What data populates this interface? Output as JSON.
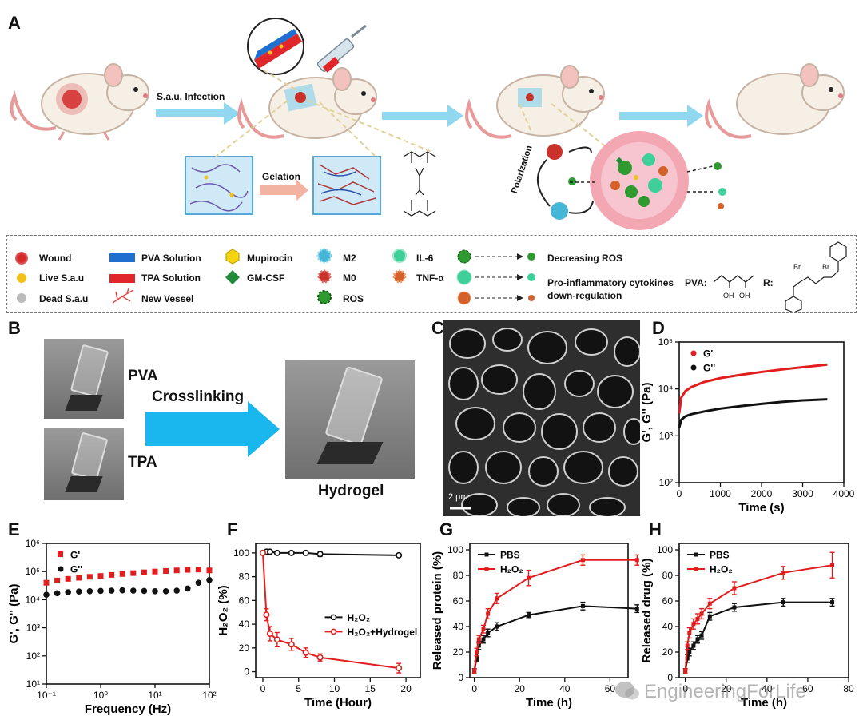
{
  "panels": {
    "A": "A",
    "B": "B",
    "C": "C",
    "D": "D",
    "E": "E",
    "F": "F",
    "G": "G",
    "H": "H"
  },
  "schematic": {
    "infection_label": "S.a.u. Infection",
    "gelation_label": "Gelation",
    "polarization_label": "Polarization"
  },
  "legend": {
    "items": [
      {
        "label": "Wound",
        "icon": "red-dot-icon",
        "color": "#d42a2a"
      },
      {
        "label": "Live S.a.u",
        "icon": "yellow-dot-icon",
        "color": "#f2c21b"
      },
      {
        "label": "Dead S.a.u",
        "icon": "grey-dot-icon",
        "color": "#aaaaaa"
      },
      {
        "label": "PVA Solution",
        "icon": "blue-bar-icon",
        "color": "#1f6fd0"
      },
      {
        "label": "TPA Solution",
        "icon": "red-bar-icon",
        "color": "#e0262b"
      },
      {
        "label": "New Vessel",
        "icon": "vessel-icon",
        "color": "#e04a4a"
      },
      {
        "label": "Mupirocin",
        "icon": "hexagon-icon",
        "color": "#f4d313"
      },
      {
        "label": "GM-CSF",
        "icon": "diamond-icon",
        "color": "#1e8a3a"
      },
      {
        "label": "M2",
        "icon": "m2-cell-icon",
        "color": "#45b6d8"
      },
      {
        "label": "M0",
        "icon": "m0-cell-icon",
        "color": "#c8322a"
      },
      {
        "label": "ROS",
        "icon": "ros-icon",
        "color": "#2f9a2f"
      },
      {
        "label": "IL-6",
        "icon": "il6-icon",
        "color": "#3fcf9a"
      },
      {
        "label": "TNF-α",
        "icon": "tnf-icon",
        "color": "#d4602a"
      }
    ],
    "decreasing_ros": "Decreasing  ROS",
    "cytokines_line1": "Pro-inflammatory cytokines",
    "cytokines_line2": "down-regulation",
    "pva_label": "PVA:",
    "r_label": "R:",
    "oh1": "OH",
    "oh2": "OH",
    "br1": "Br",
    "br2": "Br"
  },
  "panel_b": {
    "pva": "PVA",
    "tpa": "TPA",
    "crosslinking": "Crosslinking",
    "hydrogel": "Hydrogel"
  },
  "panel_c": {
    "scale_bar": "2 μm"
  },
  "watermark": "EngineeringForLife",
  "chart_data": [
    {
      "panel": "D",
      "type": "line",
      "xlabel": "Time (s)",
      "ylabel": "G', G'' (Pa)",
      "xlim": [
        0,
        4000
      ],
      "ylim_log10": [
        2,
        5
      ],
      "yscale": "log",
      "xticks": [
        "0",
        "1000",
        "2000",
        "3000",
        "4000"
      ],
      "yticks": [
        "10²",
        "10³",
        "10⁴",
        "10⁵"
      ],
      "legend": "top-left",
      "series": [
        {
          "name": "G'",
          "color": "#e21d1d",
          "x": [
            0,
            50,
            150,
            300,
            600,
            1000,
            1500,
            2000,
            2500,
            3000,
            3600
          ],
          "y": [
            3000,
            6500,
            9000,
            11000,
            14000,
            17000,
            20000,
            23000,
            26000,
            29000,
            33000
          ]
        },
        {
          "name": "G''",
          "color": "#111111",
          "x": [
            0,
            50,
            150,
            300,
            600,
            1000,
            1500,
            2000,
            2500,
            3000,
            3600
          ],
          "y": [
            1500,
            2200,
            2600,
            2900,
            3300,
            3800,
            4300,
            4800,
            5300,
            5700,
            6000
          ]
        }
      ]
    },
    {
      "panel": "E",
      "type": "scatter",
      "xlabel": "Frequency (Hz)",
      "ylabel": "G', G'' (Pa)",
      "xscale": "log",
      "yscale": "log",
      "xlim_log10": [
        -1,
        2
      ],
      "ylim_log10": [
        1,
        6
      ],
      "xticks": [
        "10⁻¹",
        "10⁰",
        "10¹",
        "10²"
      ],
      "yticks": [
        "10¹",
        "10²",
        "10³",
        "10⁴",
        "10⁵",
        "10⁶"
      ],
      "legend": "top-left",
      "series": [
        {
          "name": "G'",
          "color": "#e21d1d",
          "x_log10": [
            -1,
            -0.8,
            -0.6,
            -0.4,
            -0.2,
            0,
            0.2,
            0.4,
            0.6,
            0.8,
            1.0,
            1.2,
            1.4,
            1.6,
            1.8,
            2.0
          ],
          "y": [
            40000,
            48000,
            55000,
            60000,
            65000,
            70000,
            76000,
            82000,
            88000,
            94000,
            100000,
            105000,
            110000,
            115000,
            118000,
            110000
          ]
        },
        {
          "name": "G''",
          "color": "#111111",
          "x_log10": [
            -1,
            -0.8,
            -0.6,
            -0.4,
            -0.2,
            0,
            0.2,
            0.4,
            0.6,
            0.8,
            1.0,
            1.2,
            1.4,
            1.6,
            1.8,
            2.0
          ],
          "y": [
            15000,
            17000,
            18500,
            19500,
            20000,
            20500,
            21000,
            21500,
            21000,
            20500,
            20000,
            20000,
            21000,
            25000,
            40000,
            50000
          ]
        }
      ]
    },
    {
      "panel": "F",
      "type": "line",
      "xlabel": "Time (Hour)",
      "ylabel": "H₂O₂ (%)",
      "xlim": [
        -1,
        22
      ],
      "ylim": [
        -5,
        108
      ],
      "xticks": [
        "0",
        "5",
        "10",
        "15",
        "20"
      ],
      "yticks": [
        "0",
        "20",
        "40",
        "60",
        "80",
        "100"
      ],
      "legend": "center-right",
      "series": [
        {
          "name": "H₂O₂",
          "color": "#111111",
          "marker": "open-circle",
          "x": [
            0,
            0.5,
            1,
            2,
            4,
            6,
            8,
            19
          ],
          "y": [
            100,
            101,
            101,
            100,
            100,
            100,
            99,
            98
          ],
          "err": [
            0,
            0,
            0,
            0,
            0,
            0,
            2,
            0
          ]
        },
        {
          "name": "H₂O₂+Hydrogel",
          "color": "#e21d1d",
          "marker": "open-circle",
          "x": [
            0,
            0.5,
            1,
            2,
            4,
            6,
            8,
            19
          ],
          "y": [
            100,
            48,
            32,
            27,
            23,
            16,
            12,
            3
          ],
          "err": [
            0,
            5,
            6,
            6,
            5,
            4,
            3,
            4
          ]
        }
      ]
    },
    {
      "panel": "G",
      "type": "line",
      "xlabel": "Time (h)",
      "ylabel": "Released protein (%)",
      "xlim": [
        -2,
        68
      ],
      "ylim": [
        0,
        105
      ],
      "xticks": [
        "0",
        "20",
        "40",
        "60"
      ],
      "yticks": [
        "0",
        "20",
        "40",
        "60",
        "80",
        "100"
      ],
      "legend": "top-left",
      "series": [
        {
          "name": "PBS",
          "color": "#111111",
          "x": [
            0,
            1,
            2,
            4,
            6,
            10,
            24,
            48,
            72
          ],
          "y": [
            5,
            15,
            25,
            30,
            35,
            40,
            49,
            56,
            54
          ],
          "err": [
            2,
            2,
            3,
            3,
            3,
            3,
            2,
            3,
            3
          ]
        },
        {
          "name": "H₂O₂",
          "color": "#e21d1d",
          "x": [
            0,
            1,
            2,
            4,
            6,
            10,
            24,
            48,
            72
          ],
          "y": [
            5,
            20,
            30,
            38,
            50,
            62,
            78,
            92,
            92
          ],
          "err": [
            2,
            3,
            3,
            3,
            4,
            4,
            6,
            4,
            4
          ]
        }
      ]
    },
    {
      "panel": "H",
      "type": "line",
      "xlabel": "Time (h)",
      "ylabel": "Released drug (%)",
      "xlim": [
        -3,
        80
      ],
      "ylim": [
        0,
        105
      ],
      "xticks": [
        "0",
        "20",
        "40",
        "60",
        "80"
      ],
      "yticks": [
        "0",
        "20",
        "40",
        "60",
        "80",
        "100"
      ],
      "legend": "top-left",
      "series": [
        {
          "name": "PBS",
          "color": "#111111",
          "x": [
            0,
            1,
            2,
            4,
            6,
            8,
            12,
            24,
            48,
            72
          ],
          "y": [
            5,
            15,
            20,
            25,
            30,
            33,
            48,
            55,
            59,
            59
          ],
          "err": [
            2,
            3,
            3,
            3,
            3,
            3,
            3,
            3,
            3,
            3
          ]
        },
        {
          "name": "H₂O₂",
          "color": "#e21d1d",
          "x": [
            0,
            1,
            2,
            4,
            6,
            8,
            12,
            24,
            48,
            72
          ],
          "y": [
            5,
            25,
            35,
            42,
            46,
            50,
            58,
            70,
            82,
            88
          ],
          "err": [
            2,
            3,
            4,
            4,
            4,
            4,
            4,
            5,
            5,
            10
          ]
        }
      ]
    }
  ]
}
